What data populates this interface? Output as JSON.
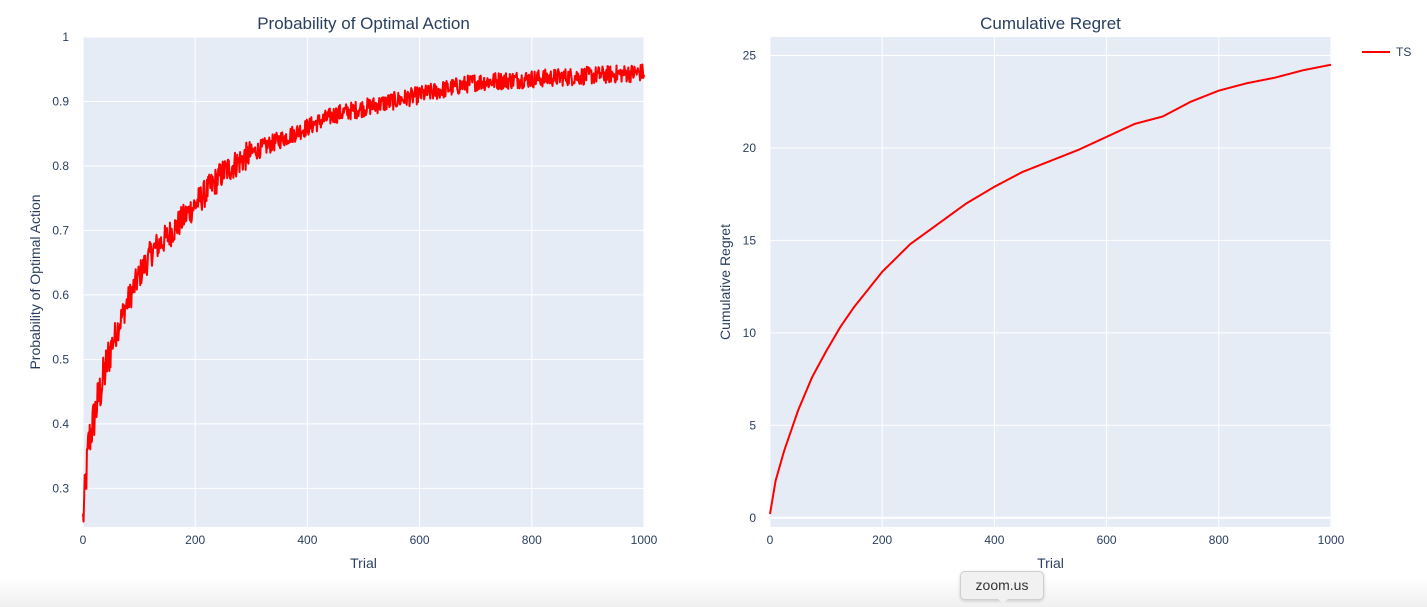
{
  "chart_data": [
    {
      "type": "line",
      "title": "Probability of Optimal Action",
      "xlabel": "Trial",
      "ylabel": "Probability of Optimal Action",
      "xlim": [
        0,
        1000
      ],
      "ylim": [
        0.24,
        1.0
      ],
      "x_ticks": [
        "0",
        "200",
        "400",
        "600",
        "800",
        "1000"
      ],
      "y_ticks": [
        "0.3",
        "0.4",
        "0.5",
        "0.6",
        "0.7",
        "0.8",
        "0.9",
        "1"
      ],
      "grid": true,
      "series": [
        {
          "color": "#ff0000",
          "noisy": true,
          "x": [
            0,
            10,
            25,
            50,
            75,
            100,
            125,
            150,
            200,
            250,
            300,
            350,
            400,
            450,
            500,
            550,
            600,
            650,
            700,
            800,
            900,
            1000
          ],
          "y": [
            0.25,
            0.37,
            0.43,
            0.52,
            0.58,
            0.63,
            0.67,
            0.69,
            0.74,
            0.79,
            0.82,
            0.84,
            0.86,
            0.88,
            0.89,
            0.9,
            0.91,
            0.92,
            0.93,
            0.935,
            0.94,
            0.945
          ]
        }
      ]
    },
    {
      "type": "line",
      "title": "Cumulative Regret",
      "xlabel": "Trial",
      "ylabel": "Cumulative Regret",
      "xlim": [
        0,
        1000
      ],
      "ylim": [
        -0.5,
        26
      ],
      "x_ticks": [
        "0",
        "200",
        "400",
        "600",
        "800",
        "1000"
      ],
      "y_ticks": [
        "0",
        "5",
        "10",
        "15",
        "20",
        "25"
      ],
      "grid": true,
      "legend_position": "top-right",
      "series": [
        {
          "name": "TS",
          "color": "#ff0000",
          "x": [
            0,
            10,
            25,
            50,
            75,
            100,
            125,
            150,
            200,
            250,
            300,
            350,
            400,
            450,
            500,
            550,
            600,
            650,
            700,
            750,
            800,
            850,
            900,
            950,
            1000
          ],
          "y": [
            0.2,
            2.0,
            3.6,
            5.8,
            7.6,
            9.0,
            10.3,
            11.4,
            13.3,
            14.8,
            15.9,
            17.0,
            17.9,
            18.7,
            19.3,
            19.9,
            20.6,
            21.3,
            21.7,
            22.5,
            23.1,
            23.5,
            23.8,
            24.2,
            24.5
          ]
        }
      ]
    }
  ],
  "tooltip": {
    "label": "zoom.us"
  }
}
